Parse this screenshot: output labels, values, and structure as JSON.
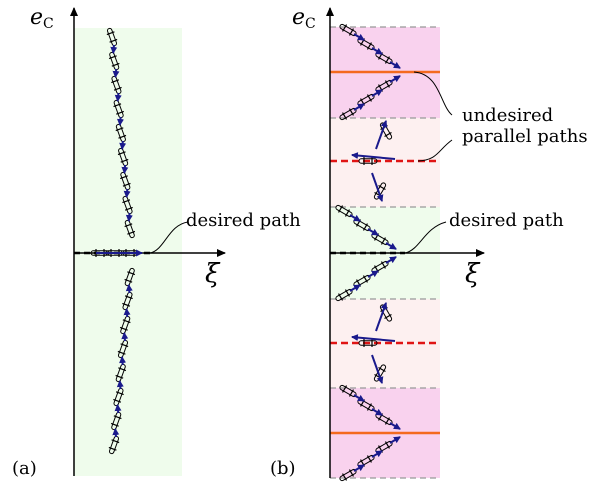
{
  "panel_a": {
    "tag": "(a)",
    "y_axis_main": "e",
    "y_axis_sub": "C",
    "x_axis": "ξ",
    "annotation": "desired path"
  },
  "panel_b": {
    "tag": "(b)",
    "y_axis_main": "e",
    "y_axis_sub": "C",
    "x_axis": "ξ",
    "annotation_desired": "desired path",
    "annotation_undesired_line1": "undesired",
    "annotation_undesired_line2": "parallel paths"
  },
  "colors": {
    "green_band": "#effcec",
    "pink_band": "#f9d2ee",
    "light_pink_band": "#fdf0f0",
    "orange_line": "#f46a1f",
    "red_dashed": "#e01414",
    "arrow_blue": "#1a1a8c",
    "gray_dashed": "#999999"
  }
}
